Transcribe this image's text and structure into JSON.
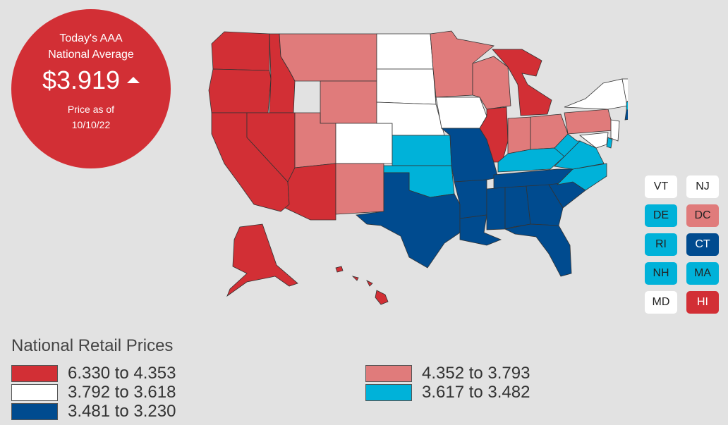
{
  "badge": {
    "line1": "Today's AAA",
    "line2": "National Average",
    "price": "$3.919",
    "trend": "up-arrow-icon",
    "price_as_of_label": "Price as of",
    "date": "10/10/22"
  },
  "colors": {
    "tier1": "#d22f35",
    "tier2": "#e07b7b",
    "tier3": "#ffffff",
    "tier4": "#00b2d9",
    "tier5": "#004b8f"
  },
  "small_states": [
    {
      "code": "VT",
      "tier": "tier3"
    },
    {
      "code": "NJ",
      "tier": "tier3"
    },
    {
      "code": "DE",
      "tier": "tier4"
    },
    {
      "code": "DC",
      "tier": "tier2"
    },
    {
      "code": "RI",
      "tier": "tier4"
    },
    {
      "code": "CT",
      "tier": "tier5"
    },
    {
      "code": "NH",
      "tier": "tier4"
    },
    {
      "code": "MA",
      "tier": "tier4"
    },
    {
      "code": "MD",
      "tier": "tier3"
    },
    {
      "code": "HI",
      "tier": "tier1"
    }
  ],
  "legend": {
    "title": "National Retail Prices",
    "items": [
      {
        "range": "6.330 to 4.353",
        "tier": "tier1"
      },
      {
        "range": "4.352 to 3.793",
        "tier": "tier2"
      },
      {
        "range": "3.792 to 3.618",
        "tier": "tier3"
      },
      {
        "range": "3.617 to 3.482",
        "tier": "tier4"
      },
      {
        "range": "3.481 to 3.230",
        "tier": "tier5"
      }
    ]
  }
}
